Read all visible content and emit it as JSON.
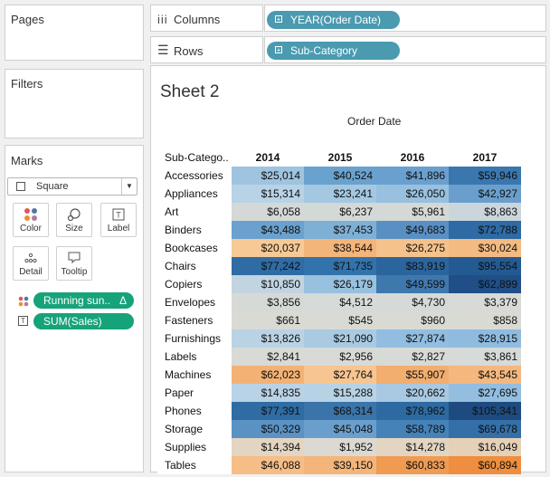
{
  "left_panel": {
    "pages_title": "Pages",
    "filters_title": "Filters",
    "marks_title": "Marks",
    "mark_type": "Square",
    "buttons": {
      "color": "Color",
      "size": "Size",
      "label": "Label",
      "detail": "Detail",
      "tooltip": "Tooltip"
    },
    "pills": {
      "running": "Running sun..",
      "running_symbol": "Δ",
      "sales": "SUM(Sales)"
    }
  },
  "shelves": {
    "columns_label": "Columns",
    "columns_pill": "YEAR(Order Date)",
    "rows_label": "Rows",
    "rows_pill": "Sub-Category"
  },
  "sheet": {
    "title": "Sheet 2",
    "column_header_title": "Order Date",
    "row_header_title": "Sub-Catego..",
    "years": [
      "2014",
      "2015",
      "2016",
      "2017"
    ],
    "rows": [
      {
        "name": "Accessories",
        "values": [
          "$25,014",
          "$40,524",
          "$41,896",
          "$59,946"
        ],
        "colors": [
          "#9ec4e0",
          "#6aa2cf",
          "#6aa0cf",
          "#3a77af"
        ]
      },
      {
        "name": "Appliances",
        "values": [
          "$15,314",
          "$23,241",
          "$26,050",
          "$42,927"
        ],
        "colors": [
          "#b8d2e6",
          "#a4c8e2",
          "#98c0df",
          "#6a9fcd"
        ]
      },
      {
        "name": "Art",
        "values": [
          "$6,058",
          "$6,237",
          "$5,961",
          "$8,863"
        ],
        "colors": [
          "#d4d9d7",
          "#d3d9d7",
          "#d4d9d7",
          "#cad6db"
        ]
      },
      {
        "name": "Binders",
        "values": [
          "$43,488",
          "$37,453",
          "$49,683",
          "$72,788"
        ],
        "colors": [
          "#6aa1ce",
          "#7eb0d6",
          "#5990c3",
          "#2e6aa3"
        ]
      },
      {
        "name": "Bookcases",
        "values": [
          "$20,037",
          "$38,544",
          "$26,275",
          "$30,024"
        ],
        "colors": [
          "#f6c995",
          "#f3b579",
          "#f5c28b",
          "#f3bb82"
        ]
      },
      {
        "name": "Chairs",
        "values": [
          "$77,242",
          "$71,735",
          "$83,919",
          "$95,554"
        ],
        "colors": [
          "#2f6ca4",
          "#3373ab",
          "#2b659d",
          "#245a92"
        ]
      },
      {
        "name": "Copiers",
        "values": [
          "$10,850",
          "$26,179",
          "$49,599",
          "$62,899"
        ],
        "colors": [
          "#c1d4e0",
          "#98c0df",
          "#3f78ad",
          "#1f4f86"
        ]
      },
      {
        "name": "Envelopes",
        "values": [
          "$3,856",
          "$4,512",
          "$4,730",
          "$3,379"
        ],
        "colors": [
          "#d6dad7",
          "#d6dad8",
          "#d5dad8",
          "#d7dad7"
        ]
      },
      {
        "name": "Fasteners",
        "values": [
          "$661",
          "$545",
          "$960",
          "$858"
        ],
        "colors": [
          "#dadad5",
          "#dadad5",
          "#dadad5",
          "#dadad5"
        ]
      },
      {
        "name": "Furnishings",
        "values": [
          "$13,826",
          "$21,090",
          "$27,874",
          "$28,915"
        ],
        "colors": [
          "#bad3e4",
          "#a9cae1",
          "#92bde0",
          "#8fbbdf"
        ]
      },
      {
        "name": "Labels",
        "values": [
          "$2,841",
          "$2,956",
          "$2,827",
          "$3,861"
        ],
        "colors": [
          "#d8dad6",
          "#d8dad6",
          "#d8dad6",
          "#d6dad8"
        ]
      },
      {
        "name": "Machines",
        "values": [
          "$62,023",
          "$27,764",
          "$55,907",
          "$43,545"
        ],
        "colors": [
          "#f3b274",
          "#f6c591",
          "#f2ae6f",
          "#f4b87e"
        ]
      },
      {
        "name": "Paper",
        "values": [
          "$14,835",
          "$15,288",
          "$20,662",
          "$27,695"
        ],
        "colors": [
          "#b9d2e5",
          "#b8d2e5",
          "#a8c9e1",
          "#93bee0"
        ]
      },
      {
        "name": "Phones",
        "values": [
          "$77,391",
          "$68,314",
          "$78,962",
          "$105,341"
        ],
        "colors": [
          "#2f6ca4",
          "#3a74a9",
          "#2d6aa2",
          "#1d4b80"
        ]
      },
      {
        "name": "Storage",
        "values": [
          "$50,329",
          "$45,048",
          "$58,789",
          "$69,678"
        ],
        "colors": [
          "#5a92c4",
          "#6a9fcd",
          "#4582b8",
          "#356fa8"
        ]
      },
      {
        "name": "Supplies",
        "values": [
          "$14,394",
          "$1,952",
          "$14,278",
          "$16,049"
        ],
        "colors": [
          "#e3d5c2",
          "#dcd9d3",
          "#e3d5c2",
          "#e5d1b7"
        ]
      },
      {
        "name": "Tables",
        "values": [
          "$46,088",
          "$39,150",
          "$60,833",
          "$60,894"
        ],
        "colors": [
          "#f6be86",
          "#f4b57a",
          "#f09b52",
          "#ee8e3e"
        ]
      }
    ]
  },
  "colors": {
    "pill_green": "#17a37a",
    "pill_blue": "#4a9ab0"
  }
}
